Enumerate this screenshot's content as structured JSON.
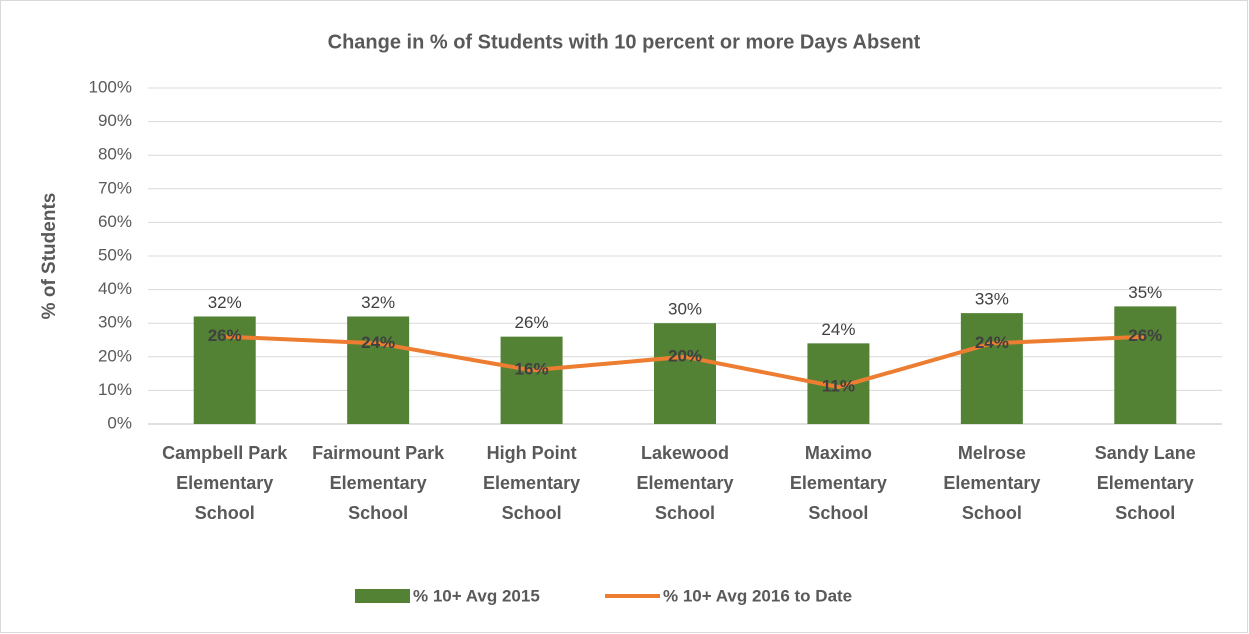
{
  "chart_data": {
    "type": "bar_line",
    "title": "Change in % of Students with 10 percent or more Days Absent",
    "y_label": "% of Students",
    "categories": [
      "Campbell Park Elementary School",
      "Fairmount Park Elementary School",
      "High Point Elementary School",
      "Lakewood Elementary School",
      "Maximo Elementary School",
      "Melrose Elementary School",
      "Sandy Lane Elementary School"
    ],
    "series": [
      {
        "name": "% 10+ Avg 2015",
        "type": "bar",
        "color": "#548235",
        "values": [
          32,
          32,
          26,
          30,
          24,
          33,
          35
        ],
        "value_labels": [
          "32%",
          "32%",
          "26%",
          "30%",
          "24%",
          "33%",
          "35%"
        ]
      },
      {
        "name": "% 10+ Avg 2016 to Date",
        "type": "line",
        "color": "#ED7D31",
        "values": [
          26,
          24,
          16,
          20,
          11,
          24,
          26
        ],
        "value_labels": [
          "26%",
          "24%",
          "16%",
          "20%",
          "11%",
          "24%",
          "26%"
        ]
      }
    ],
    "ylim": [
      0,
      100
    ],
    "yticks": [
      {
        "value": 0,
        "label": "0%"
      },
      {
        "value": 10,
        "label": "10%"
      },
      {
        "value": 20,
        "label": "20%"
      },
      {
        "value": 30,
        "label": "30%"
      },
      {
        "value": 40,
        "label": "40%"
      },
      {
        "value": 50,
        "label": "50%"
      },
      {
        "value": 60,
        "label": "60%"
      },
      {
        "value": 70,
        "label": "70%"
      },
      {
        "value": 80,
        "label": "80%"
      },
      {
        "value": 90,
        "label": "90%"
      },
      {
        "value": 100,
        "label": "100%"
      }
    ],
    "grid": true,
    "legend": "bottom"
  }
}
